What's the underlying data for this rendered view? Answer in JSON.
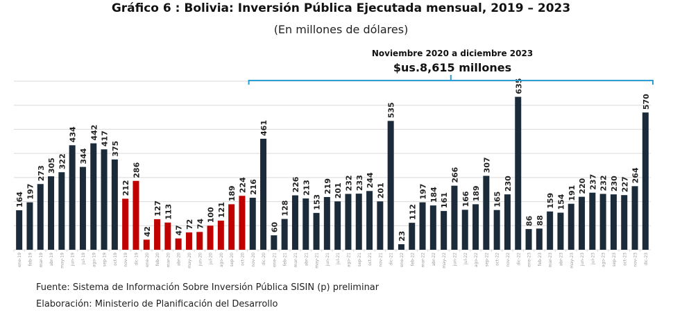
{
  "chart_data": {
    "type": "bar",
    "title": "Gráfico 6 : Bolivia: Inversión Pública Ejecutada mensual, 2019 – 2023",
    "subtitle": "(En millones de dólares)",
    "annotation": {
      "line1": "Noviembre 2020 a diciembre 2023",
      "line2": "$us.8,615 millones",
      "range": [
        "nov-20",
        "dic-23"
      ],
      "color": "#2a9fd6"
    },
    "categories": [
      "ene-19",
      "feb-19",
      "mar-19",
      "abr-19",
      "may-19",
      "jun-19",
      "jul-19",
      "ago-19",
      "sep-19",
      "oct-19",
      "nov-19",
      "dic-19",
      "ene-20",
      "feb-20",
      "mar-20",
      "abr-20",
      "may-20",
      "jun-20",
      "jul-20",
      "ago-20",
      "sep-20",
      "oct-20",
      "nov-20",
      "dic-20",
      "ene-21",
      "feb-21",
      "mar-21",
      "abr-21",
      "may-21",
      "jun-21",
      "jul-21",
      "ago-21",
      "sep-21",
      "oct-21",
      "nov-21",
      "dic-21",
      "ene-22",
      "feb-22",
      "mar-22",
      "abr-22",
      "may-22",
      "jun-22",
      "jul-22",
      "ago-22",
      "sep-22",
      "oct-22",
      "nov-22",
      "dic-22",
      "ene-23",
      "feb-23",
      "mar-23",
      "abr-23",
      "may-23",
      "jun-23",
      "jul-23",
      "ago-23",
      "sep-23",
      "oct-23",
      "nov-23",
      "dic-23"
    ],
    "values": [
      164,
      197,
      273,
      305,
      322,
      434,
      344,
      442,
      417,
      375,
      212,
      286,
      42,
      127,
      113,
      47,
      72,
      74,
      100,
      121,
      189,
      224,
      216,
      461,
      60,
      128,
      226,
      213,
      153,
      219,
      201,
      232,
      233,
      244,
      201,
      535,
      23,
      112,
      197,
      184,
      161,
      266,
      166,
      189,
      307,
      165,
      230,
      635,
      86,
      88,
      159,
      154,
      191,
      220,
      237,
      232,
      230,
      227,
      264,
      570
    ],
    "highlight_range": [
      "nov-19",
      "oct-20"
    ],
    "colors": {
      "default": "#1c2b3a",
      "highlight": "#c00000",
      "grid": "#d9d9d9",
      "axis_labels": "#9a9a9a"
    },
    "ylim": [
      0,
      700
    ],
    "grid": true,
    "y_tick_labels_shown": false,
    "xlabel": "",
    "ylabel": ""
  },
  "footer": {
    "source": "Fuente: Sistema de Información Sobre Inversión Pública SISIN (p) preliminar",
    "elaboration": "Elaboración: Ministerio de Planificación del Desarrollo"
  }
}
